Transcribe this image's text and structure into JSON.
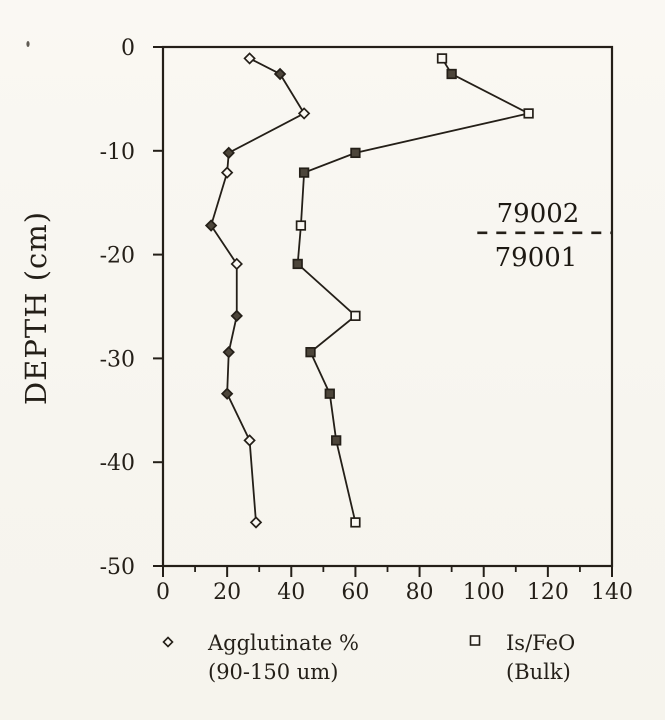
{
  "figure": {
    "paper": "#faf8f3",
    "ink": "#241f18",
    "marker_fill_dark": "#4c453a",
    "marker_fill_open": "#faf8f3"
  },
  "chart_data": {
    "type": "line",
    "title": "",
    "xlabel": "",
    "ylabel": "DEPTH (cm)",
    "xlim": [
      0,
      140
    ],
    "ylim": [
      -50,
      0
    ],
    "grid": false,
    "legend_position": "bottom",
    "x_major_ticks": [
      0,
      20,
      40,
      60,
      80,
      100,
      120,
      140
    ],
    "x_major_tick_labels": [
      "0",
      "20",
      "40",
      "60",
      "80",
      "100",
      "120",
      "140"
    ],
    "x_minor_ticks": [
      10,
      30,
      50,
      70,
      90,
      110,
      130
    ],
    "y_major_ticks": [
      0,
      -10,
      -20,
      -30,
      -40,
      -50
    ],
    "y_major_tick_labels": [
      "0",
      "-10",
      "-20",
      "-30",
      "-40",
      "-50"
    ],
    "depths_cm": [
      -1.1,
      -2.6,
      -6.4,
      -10.2,
      -12.1,
      -17.2,
      -20.9,
      -25.9,
      -29.4,
      -33.4,
      -37.9,
      -45.8
    ],
    "series": [
      {
        "name": "Agglutinate % (90-150 um)",
        "marker": "diamond",
        "values": [
          27,
          36.5,
          44,
          20.5,
          20,
          15,
          23,
          23,
          20.5,
          20,
          27,
          29
        ],
        "filled": [
          false,
          true,
          false,
          true,
          false,
          true,
          false,
          true,
          true,
          true,
          false,
          false
        ]
      },
      {
        "name": "Is/FeO (Bulk)",
        "marker": "square",
        "values": [
          87,
          90,
          114,
          60,
          44,
          43,
          42,
          60,
          46,
          52,
          54,
          60
        ],
        "filled": [
          false,
          true,
          false,
          true,
          true,
          false,
          true,
          false,
          true,
          true,
          true,
          false
        ]
      }
    ],
    "annotation": {
      "boundary_depth_cm": -17.9,
      "boundary_x_start": 98,
      "upper_core_label": "79002",
      "lower_core_label": "79001"
    },
    "legend": {
      "items": [
        {
          "marker": "diamond",
          "line1": "Agglutinate %",
          "line2": "(90-150 um)"
        },
        {
          "marker": "square",
          "line1": "Is/FeO",
          "line2": "(Bulk)"
        }
      ]
    }
  }
}
